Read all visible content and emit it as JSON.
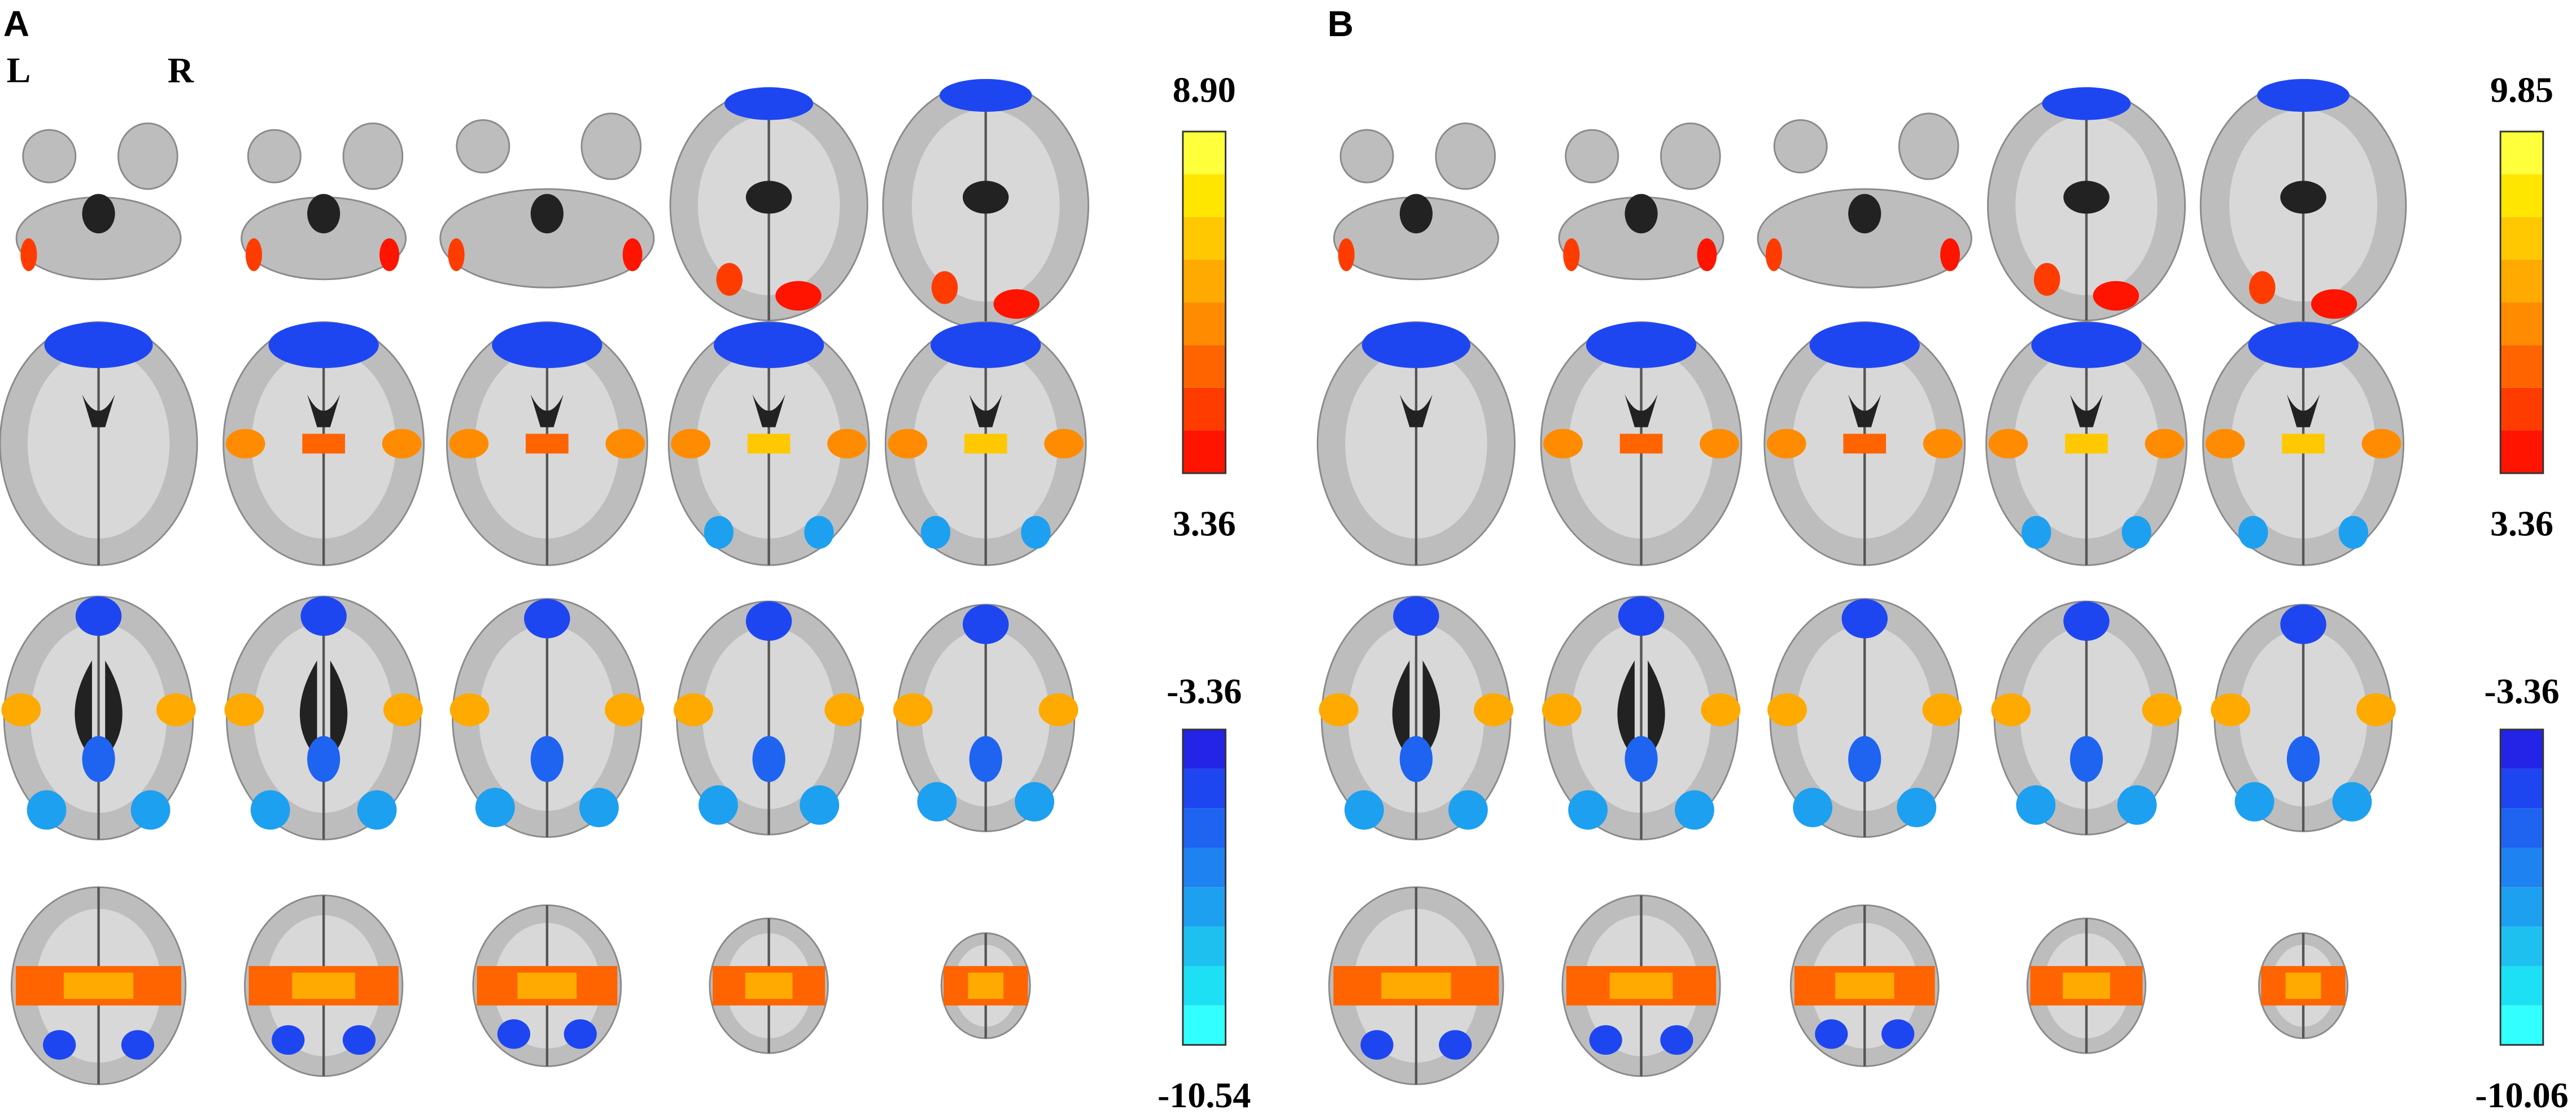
{
  "panels": [
    {
      "label": "A",
      "orientation": {
        "left": "L",
        "right": "R"
      },
      "hot_scale": {
        "max": "8.90",
        "min": "3.36"
      },
      "cold_scale": {
        "max": "-3.36",
        "min": "-10.54"
      }
    },
    {
      "label": "B",
      "hot_scale": {
        "max": "9.85",
        "min": "3.36"
      },
      "cold_scale": {
        "max": "-3.36",
        "min": "-10.06"
      }
    }
  ]
}
